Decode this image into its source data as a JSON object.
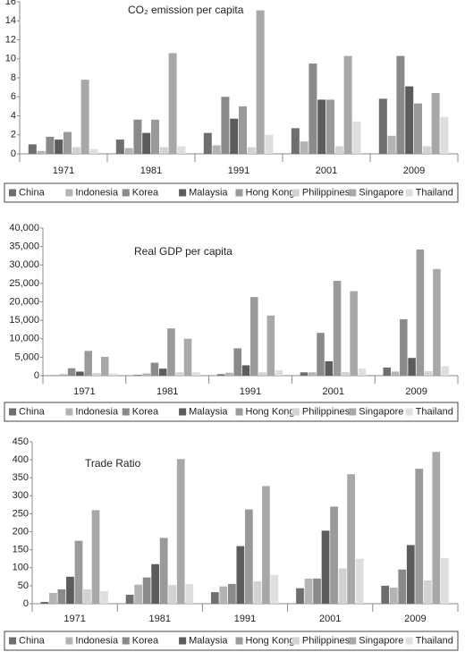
{
  "chart_data": [
    {
      "type": "bar",
      "title": "CO₂ emission per capita",
      "categories": [
        "1971",
        "1981",
        "1991",
        "2001",
        "2009"
      ],
      "ylim": [
        0,
        16
      ],
      "yticks": [
        0,
        2,
        4,
        6,
        8,
        10,
        12,
        14,
        16
      ],
      "series": [
        {
          "name": "China",
          "color": "#6e6e6e",
          "values": [
            1.0,
            1.5,
            2.2,
            2.7,
            5.8
          ]
        },
        {
          "name": "Indonesia",
          "color": "#b4b4b4",
          "values": [
            0.3,
            0.6,
            0.9,
            1.3,
            1.9
          ]
        },
        {
          "name": "Korea",
          "color": "#8a8a8a",
          "values": [
            1.8,
            3.6,
            6.0,
            9.5,
            10.3
          ]
        },
        {
          "name": "Malaysia",
          "color": "#5c5c5c",
          "values": [
            1.5,
            2.2,
            3.7,
            5.7,
            7.1
          ]
        },
        {
          "name": "Hong Kong",
          "color": "#9a9a9a",
          "values": [
            2.3,
            3.6,
            5.0,
            5.7,
            5.3
          ]
        },
        {
          "name": "Philippines",
          "color": "#d2d2d2",
          "values": [
            0.7,
            0.7,
            0.7,
            0.8,
            0.8
          ]
        },
        {
          "name": "Singapore",
          "color": "#a8a8a8",
          "values": [
            7.8,
            10.6,
            15.1,
            10.3,
            6.4
          ]
        },
        {
          "name": "Thailand",
          "color": "#dedede",
          "values": [
            0.5,
            0.8,
            2.0,
            3.4,
            3.9
          ]
        }
      ]
    },
    {
      "type": "bar",
      "title": "Real GDP per capita",
      "categories": [
        "1971",
        "1981",
        "1991",
        "2001",
        "2009"
      ],
      "ylim": [
        0,
        40000
      ],
      "yticks": [
        0,
        {
          "value": 5000,
          "label": "5,000"
        },
        {
          "value": 10000,
          "label": "10,000"
        },
        {
          "value": 15000,
          "label": "15,000"
        },
        {
          "value": 20000,
          "label": "20,000"
        },
        {
          "value": 25000,
          "label": "25,000"
        },
        {
          "value": 30000,
          "label": "30,000"
        },
        {
          "value": 35000,
          "label": "35,000"
        },
        {
          "value": 40000,
          "label": "40,000"
        }
      ],
      "series": [
        {
          "name": "China",
          "color": "#6e6e6e",
          "values": [
            100,
            200,
            400,
            900,
            2200
          ]
        },
        {
          "name": "Indonesia",
          "color": "#b4b4b4",
          "values": [
            400,
            600,
            800,
            900,
            1100
          ]
        },
        {
          "name": "Korea",
          "color": "#8a8a8a",
          "values": [
            2000,
            3500,
            7400,
            11600,
            15300
          ]
        },
        {
          "name": "Malaysia",
          "color": "#5c5c5c",
          "values": [
            1100,
            1900,
            2800,
            3900,
            4800
          ]
        },
        {
          "name": "Hong Kong",
          "color": "#9a9a9a",
          "values": [
            6700,
            12800,
            21300,
            25700,
            34200
          ]
        },
        {
          "name": "Philippines",
          "color": "#d2d2d2",
          "values": [
            700,
            900,
            900,
            1000,
            1200
          ]
        },
        {
          "name": "Singapore",
          "color": "#a8a8a8",
          "values": [
            5100,
            10000,
            16300,
            22900,
            28900
          ]
        },
        {
          "name": "Thailand",
          "color": "#dedede",
          "values": [
            600,
            900,
            1500,
            1900,
            2600
          ]
        }
      ]
    },
    {
      "type": "bar",
      "title": "Trade Ratio",
      "categories": [
        "1971",
        "1981",
        "1991",
        "2001",
        "2009"
      ],
      "ylim": [
        0,
        450
      ],
      "yticks": [
        0,
        50,
        100,
        150,
        200,
        250,
        300,
        350,
        400,
        450
      ],
      "series": [
        {
          "name": "China",
          "color": "#6e6e6e",
          "values": [
            5,
            25,
            32,
            43,
            50
          ]
        },
        {
          "name": "Indonesia",
          "color": "#b4b4b4",
          "values": [
            30,
            53,
            48,
            70,
            45
          ]
        },
        {
          "name": "Korea",
          "color": "#8a8a8a",
          "values": [
            40,
            73,
            55,
            70,
            95
          ]
        },
        {
          "name": "Malaysia",
          "color": "#5c5c5c",
          "values": [
            75,
            110,
            160,
            203,
            163
          ]
        },
        {
          "name": "Hong Kong",
          "color": "#9a9a9a",
          "values": [
            175,
            183,
            262,
            270,
            375
          ]
        },
        {
          "name": "Philippines",
          "color": "#d2d2d2",
          "values": [
            40,
            52,
            62,
            98,
            65
          ]
        },
        {
          "name": "Singapore",
          "color": "#a8a8a8",
          "values": [
            260,
            402,
            327,
            360,
            422
          ]
        },
        {
          "name": "Thailand",
          "color": "#dedede",
          "values": [
            35,
            55,
            80,
            125,
            127
          ]
        }
      ]
    }
  ]
}
